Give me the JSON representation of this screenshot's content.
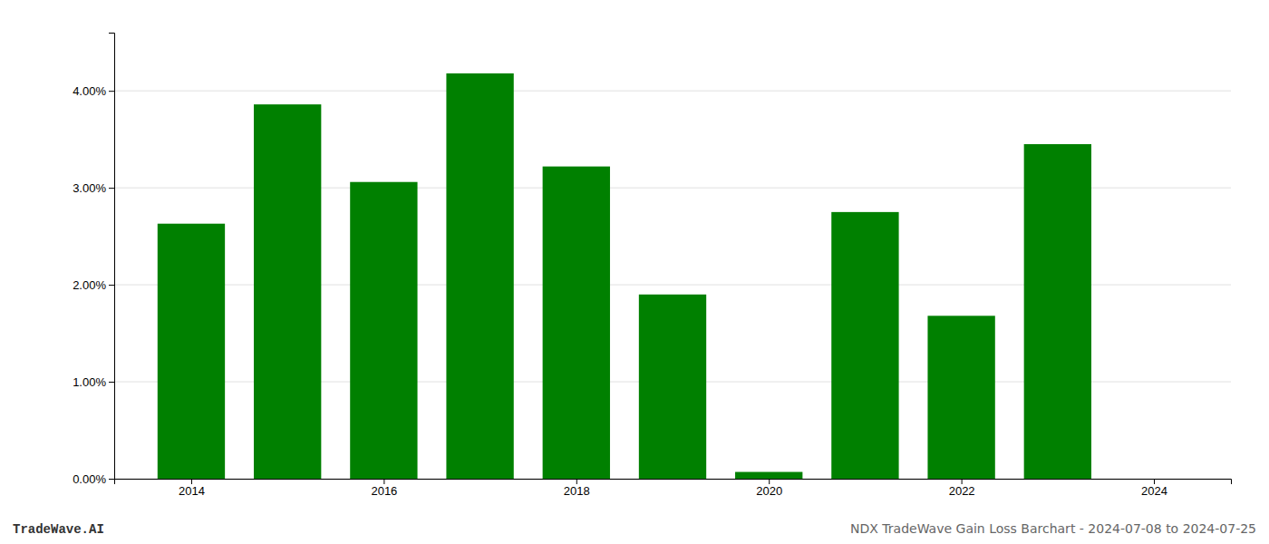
{
  "chart_data": {
    "type": "bar",
    "x": [
      2014,
      2015,
      2016,
      2017,
      2018,
      2019,
      2020,
      2021,
      2022,
      2023
    ],
    "values": [
      0.0263,
      0.0386,
      0.0306,
      0.0418,
      0.0322,
      0.019,
      0.0007,
      0.0275,
      0.0168,
      0.0345
    ],
    "color": "#008000",
    "xlim": [
      2013.2,
      2024.8
    ],
    "xticks": [
      2014,
      2016,
      2018,
      2020,
      2022,
      2024
    ],
    "ylim": [
      0,
      0.046
    ],
    "yticks": [
      {
        "value": 0.0,
        "label": "0.00%"
      },
      {
        "value": 0.01,
        "label": "1.00%"
      },
      {
        "value": 0.02,
        "label": "2.00%"
      },
      {
        "value": 0.03,
        "label": "3.00%"
      },
      {
        "value": 0.04,
        "label": "4.00%"
      }
    ],
    "grid": true,
    "annotations": [
      "TradeWave.AI",
      "NDX TradeWave Gain Loss Barchart - 2024-07-08 to 2024-07-25"
    ]
  }
}
